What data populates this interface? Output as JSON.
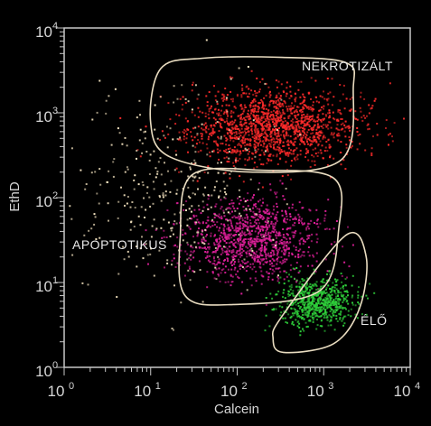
{
  "chart_data": {
    "type": "scatter",
    "xlabel": "Calcein",
    "ylabel": "EthD",
    "xscale": "log",
    "yscale": "log",
    "xlim": [
      1,
      10000
    ],
    "ylim": [
      1,
      10000
    ],
    "x_ticks": [
      {
        "base": "10",
        "exp": "0"
      },
      {
        "base": "10",
        "exp": "1"
      },
      {
        "base": "10",
        "exp": "2"
      },
      {
        "base": "10",
        "exp": "3"
      },
      {
        "base": "10",
        "exp": "4"
      }
    ],
    "y_ticks": [
      {
        "base": "10",
        "exp": "0"
      },
      {
        "base": "10",
        "exp": "1"
      },
      {
        "base": "10",
        "exp": "2"
      },
      {
        "base": "10",
        "exp": "3"
      },
      {
        "base": "10",
        "exp": "4"
      }
    ],
    "grid": false,
    "background": "#000000",
    "axis_color": "#c8c8c8",
    "gate_color": "#e9dcc0",
    "populations": [
      {
        "label": "NEKROTIZÁLT",
        "color": "#ff2b2b",
        "center": [
          250,
          700
        ],
        "spread": [
          0.5,
          0.22
        ],
        "count": 1500,
        "gate": [
          [
            13,
            3300
          ],
          [
            40,
            4400
          ],
          [
            330,
            4500
          ],
          [
            1800,
            3900
          ],
          [
            2200,
            2000
          ],
          [
            1600,
            280
          ],
          [
            150,
            200
          ],
          [
            17,
            300
          ],
          [
            10,
            750
          ]
        ]
      },
      {
        "label": "APOPTOTIKUS",
        "color": "#e0209b",
        "center": [
          150,
          32
        ],
        "spread": [
          0.4,
          0.23
        ],
        "count": 1100,
        "gate": [
          [
            30,
            185
          ],
          [
            200,
            210
          ],
          [
            1300,
            170
          ],
          [
            1500,
            45
          ],
          [
            900,
            8
          ],
          [
            90,
            5.5
          ],
          [
            25,
            7
          ],
          [
            22,
            35
          ]
        ]
      },
      {
        "label": "ÉLŐ",
        "color": "#2ecf3a",
        "center": [
          850,
          6
        ],
        "spread": [
          0.22,
          0.14
        ],
        "count": 700,
        "gate": [
          [
            330,
            4
          ],
          [
            1800,
            36
          ],
          [
            3100,
            20
          ],
          [
            2600,
            5
          ],
          [
            1300,
            1.9
          ],
          [
            340,
            1.5
          ],
          [
            260,
            2.2
          ]
        ]
      },
      {
        "label": "",
        "color": "#f4e3bf",
        "center": [
          20,
          120
        ],
        "spread": [
          0.55,
          0.55
        ],
        "count": 340,
        "gate": []
      }
    ]
  }
}
